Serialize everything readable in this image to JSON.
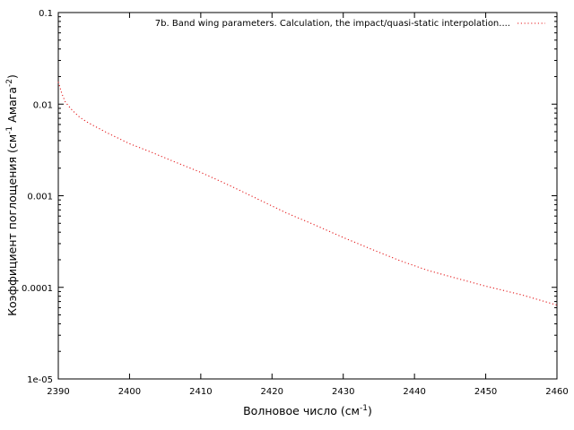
{
  "chart_data": {
    "type": "line",
    "title": "",
    "xlabel": "Волновое число (см",
    "xlabel_sup": "-1",
    "xlabel_tail": ")",
    "ylabel_pre": "Коэффициент поглощения (см",
    "ylabel_sup1": "-1",
    "ylabel_mid": " Амага",
    "ylabel_sup2": "-2",
    "ylabel_tail": ")",
    "x_range": [
      2390,
      2460
    ],
    "y_range": [
      1e-05,
      0.1
    ],
    "y_scale": "log",
    "x_ticks": [
      2390,
      2400,
      2410,
      2420,
      2430,
      2440,
      2450,
      2460
    ],
    "x_tick_labels": [
      "2390",
      "2400",
      "2410",
      "2420",
      "2430",
      "2440",
      "2450",
      "2460"
    ],
    "y_ticks": [
      1e-05,
      0.0001,
      0.001,
      0.01,
      0.1
    ],
    "y_tick_labels": [
      "1e-05",
      "0.0001",
      "0.001",
      "0.01",
      "0.1"
    ],
    "grid": false,
    "legend_position": "top-right",
    "series": [
      {
        "name": "7b. Band wing parameters. Calculation, the impact/quasi-static interpolation....",
        "color": "#e41a1c",
        "line_style": "dotted",
        "x": [
          2390,
          2390.5,
          2391,
          2392,
          2393,
          2394,
          2395,
          2397,
          2400,
          2403,
          2406,
          2410,
          2414,
          2418,
          2422,
          2426,
          2430,
          2434,
          2438,
          2442,
          2446,
          2450,
          2455,
          2460
        ],
        "y": [
          0.0175,
          0.013,
          0.0105,
          0.0085,
          0.0072,
          0.0064,
          0.0058,
          0.0048,
          0.0037,
          0.003,
          0.0024,
          0.0018,
          0.0013,
          0.00092,
          0.00065,
          0.00048,
          0.00035,
          0.00026,
          0.000195,
          0.000152,
          0.000125,
          0.000103,
          8.3e-05,
          6.4e-05
        ]
      }
    ]
  }
}
